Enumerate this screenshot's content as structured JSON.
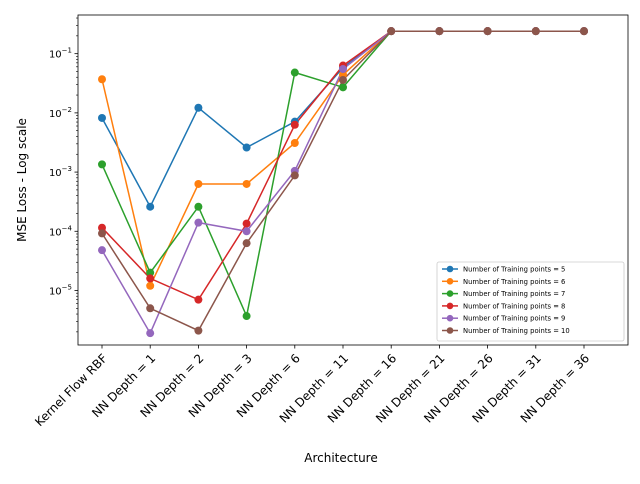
{
  "chart_data": {
    "type": "line",
    "title": "",
    "xlabel": "Architecture",
    "ylabel": "MSE Loss - Log scale",
    "yscale": "log",
    "ylim": [
      1.2e-06,
      0.45
    ],
    "grid": false,
    "legend_position": "lower-right",
    "categories": [
      "Kernel Flow RBF",
      "NN Depth = 1",
      "NN Depth = 2",
      "NN Depth = 3",
      "NN Depth = 6",
      "NN Depth = 11",
      "NN Depth = 16",
      "NN Depth = 21",
      "NN Depth = 26",
      "NN Depth = 31",
      "NN Depth = 36"
    ],
    "y_ticks": [
      {
        "value": 1e-05,
        "base": "10",
        "exp": "−5"
      },
      {
        "value": 0.0001,
        "base": "10",
        "exp": "−4"
      },
      {
        "value": 0.001,
        "base": "10",
        "exp": "−3"
      },
      {
        "value": 0.01,
        "base": "10",
        "exp": "−2"
      },
      {
        "value": 0.1,
        "base": "10",
        "exp": "−1"
      }
    ],
    "series": [
      {
        "name": "Number of Training points = 5",
        "color": "#1f77b4",
        "values": [
          0.0082,
          0.00026,
          0.0122,
          0.0026,
          0.0071,
          0.058,
          0.24,
          0.24,
          0.24,
          0.24,
          0.24
        ]
      },
      {
        "name": "Number of Training points = 6",
        "color": "#ff7f0e",
        "values": [
          0.037,
          1.2e-05,
          0.00063,
          0.00063,
          0.0031,
          0.044,
          0.24,
          0.24,
          0.24,
          0.24,
          0.24
        ]
      },
      {
        "name": "Number of Training points = 7",
        "color": "#2ca02c",
        "values": [
          0.00135,
          2e-05,
          0.00026,
          3.7e-06,
          0.048,
          0.027,
          0.24,
          0.24,
          0.24,
          0.24,
          0.24
        ]
      },
      {
        "name": "Number of Training points = 8",
        "color": "#d62728",
        "values": [
          0.000115,
          1.6e-05,
          7e-06,
          0.000135,
          0.0063,
          0.063,
          0.24,
          0.24,
          0.24,
          0.24,
          0.24
        ]
      },
      {
        "name": "Number of Training points = 9",
        "color": "#9467bd",
        "values": [
          4.8e-05,
          1.9e-06,
          0.00014,
          0.0001,
          0.00105,
          0.055,
          0.24,
          0.24,
          0.24,
          0.24,
          0.24
        ]
      },
      {
        "name": "Number of Training points = 10",
        "color": "#8c564b",
        "values": [
          9.2e-05,
          5e-06,
          2.1e-06,
          6.3e-05,
          0.00088,
          0.036,
          0.24,
          0.24,
          0.24,
          0.24,
          0.24
        ]
      }
    ]
  }
}
